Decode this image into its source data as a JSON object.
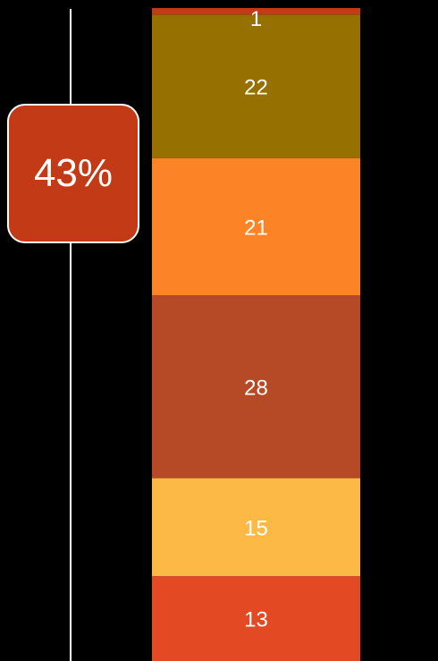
{
  "chart_data": {
    "type": "bar",
    "stacked": true,
    "orientation": "vertical",
    "segments": [
      {
        "value": 13,
        "label": "13",
        "color": "#E34A24"
      },
      {
        "value": 15,
        "label": "15",
        "color": "#FDB945"
      },
      {
        "value": 28,
        "label": "28",
        "color": "#B64A26"
      },
      {
        "value": 21,
        "label": "21",
        "color": "#FD8426"
      },
      {
        "value": 22,
        "label": "22",
        "color": "#967000"
      },
      {
        "value": 1,
        "label": "1",
        "color": "#C23A16"
      }
    ],
    "badge": {
      "text": "43%",
      "color": "#C23A16"
    },
    "label_color": "#FFFFFF",
    "background": "#000000",
    "line_color": "#FFFFFF"
  }
}
